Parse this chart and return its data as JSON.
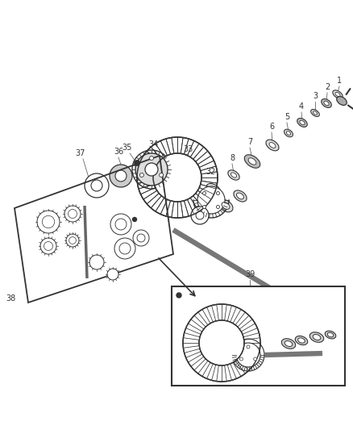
{
  "bg_color": "#ffffff",
  "figsize": [
    4.38,
    5.33
  ],
  "dpi": 100,
  "parts_right": {
    "centers": [
      [
        415,
        390,
        9,
        5,
        "1"
      ],
      [
        398,
        375,
        8,
        5,
        "2"
      ],
      [
        383,
        362,
        7,
        4,
        "3"
      ],
      [
        368,
        349,
        8,
        5,
        "4"
      ],
      [
        352,
        336,
        8,
        4,
        "5"
      ],
      [
        335,
        322,
        10,
        6,
        "6"
      ],
      [
        315,
        306,
        12,
        7,
        "7"
      ],
      [
        296,
        290,
        9,
        5,
        "8"
      ],
      [
        275,
        273,
        11,
        6,
        "32"
      ]
    ]
  },
  "label_color": "#333333",
  "line_color": "#333333",
  "shaft_color": "#888888"
}
